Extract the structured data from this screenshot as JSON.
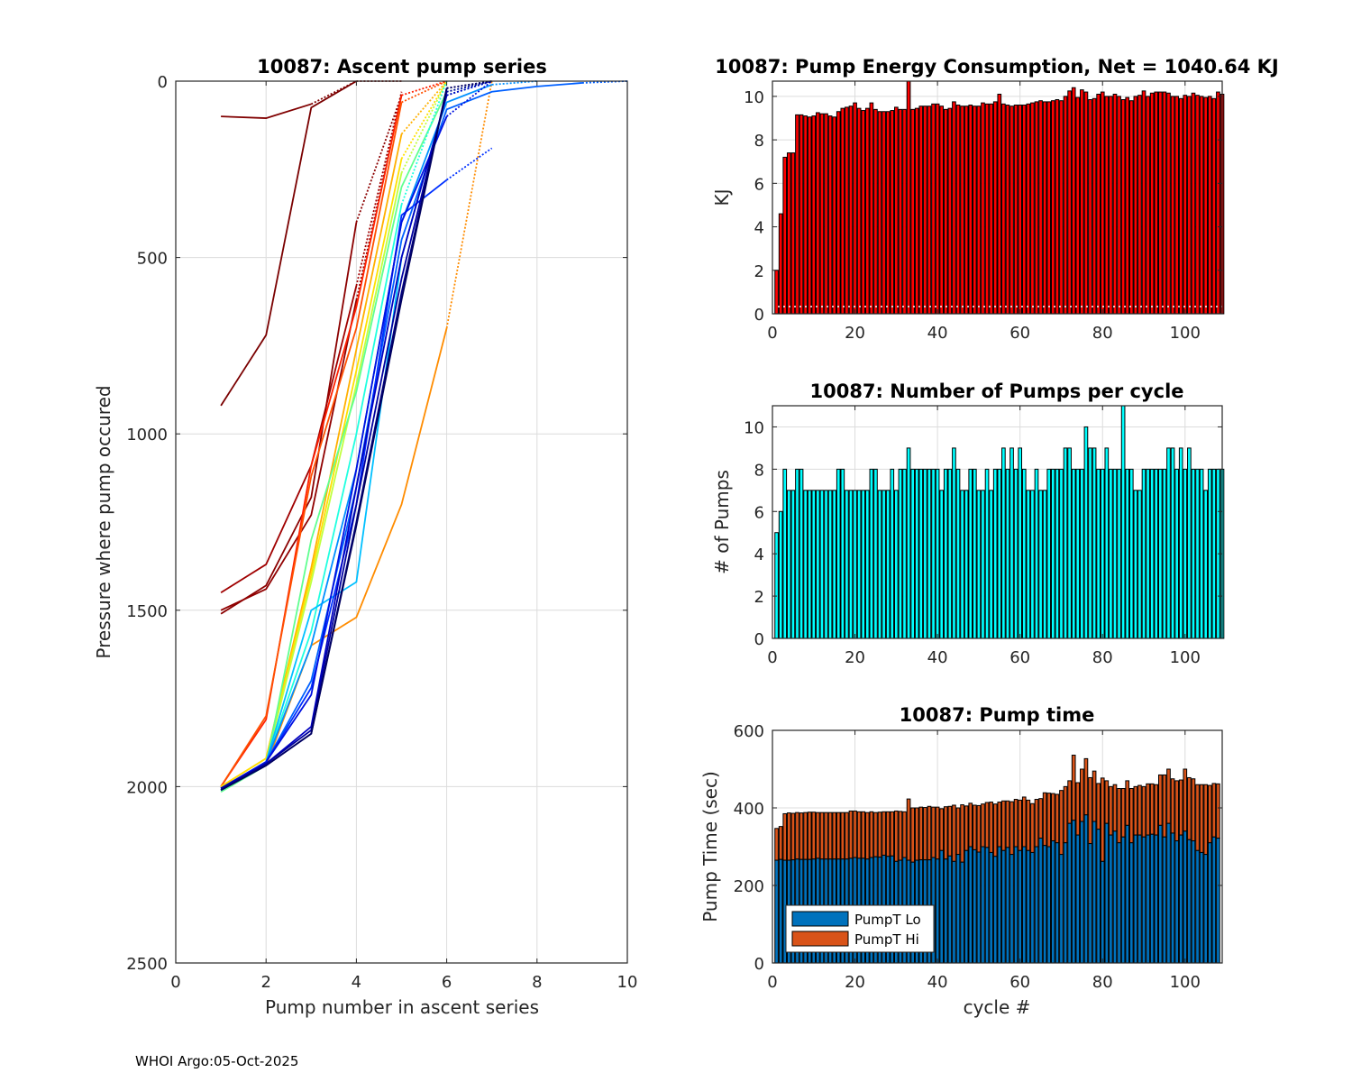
{
  "footer": "WHOI Argo:05-Oct-2025",
  "chart_data": [
    {
      "id": "ascent",
      "type": "line",
      "title": "10087: Ascent pump series",
      "xlabel": "Pump number in ascent series",
      "ylabel": "Pressure where pump occured",
      "xlim": [
        0,
        10
      ],
      "ylim": [
        0,
        2500
      ],
      "y_reversed": true,
      "xticks": [
        0,
        2,
        4,
        6,
        8,
        10
      ],
      "yticks": [
        0,
        500,
        1000,
        1500,
        2000,
        2500
      ],
      "grid": true,
      "colormap": "jet",
      "note": "one line per cycle, colored by cycle (jet colormap: early=dark red, late=dark blue); final segment to surface dotted",
      "series": [
        {
          "name": "cycle 1",
          "color": "#800000",
          "x": [
            1,
            2,
            3,
            4
          ],
          "y": [
            100,
            105,
            65,
            0
          ]
        },
        {
          "name": "cycle 2",
          "color": "#7a0000",
          "x": [
            1,
            2,
            3,
            4,
            5
          ],
          "y": [
            920,
            720,
            75,
            0,
            0
          ]
        },
        {
          "name": "cycle 3",
          "color": "#8b0000",
          "x": [
            1,
            2,
            3,
            4,
            5
          ],
          "y": [
            1510,
            1430,
            1180,
            400,
            40
          ]
        },
        {
          "name": "cycle 4",
          "color": "#900000",
          "x": [
            1,
            2,
            3,
            4,
            5
          ],
          "y": [
            1500,
            1440,
            1230,
            620,
            40
          ]
        },
        {
          "name": "cycle 5",
          "color": "#a00000",
          "x": [
            1,
            2,
            3,
            4,
            5
          ],
          "y": [
            1450,
            1370,
            1090,
            580,
            30
          ]
        },
        {
          "name": "cycle 8",
          "color": "#ff2000",
          "x": [
            1,
            2,
            3,
            4,
            5,
            6
          ],
          "y": [
            2000,
            1810,
            1090,
            640,
            40,
            0
          ]
        },
        {
          "name": "cycle 12",
          "color": "#ff5000",
          "x": [
            1,
            2,
            3,
            4,
            5,
            6
          ],
          "y": [
            2000,
            1800,
            1120,
            700,
            60,
            0
          ]
        },
        {
          "name": "cycle 18",
          "color": "#ff8c00",
          "x": [
            1,
            2,
            3,
            4,
            5,
            6,
            7
          ],
          "y": [
            2000,
            1940,
            1600,
            1520,
            1200,
            700,
            0
          ]
        },
        {
          "name": "cycle 22",
          "color": "#ffb000",
          "x": [
            1,
            2,
            3,
            4,
            5,
            6
          ],
          "y": [
            2000,
            1920,
            1380,
            760,
            150,
            0
          ]
        },
        {
          "name": "cycle 28",
          "color": "#ffe000",
          "x": [
            1,
            2,
            3,
            4,
            5,
            6
          ],
          "y": [
            2000,
            1920,
            1400,
            820,
            220,
            0
          ]
        },
        {
          "name": "cycle 34",
          "color": "#c0ff40",
          "x": [
            1,
            2,
            3,
            4,
            5,
            6
          ],
          "y": [
            2010,
            1930,
            1420,
            860,
            260,
            0
          ]
        },
        {
          "name": "cycle 40",
          "color": "#60ff90",
          "x": [
            1,
            2,
            3,
            4,
            5,
            6,
            7
          ],
          "y": [
            2015,
            1940,
            1300,
            880,
            300,
            30,
            0
          ]
        },
        {
          "name": "cycle 46",
          "color": "#20ffe0",
          "x": [
            1,
            2,
            3,
            4,
            5,
            6
          ],
          "y": [
            2010,
            1930,
            1560,
            1000,
            350,
            0
          ]
        },
        {
          "name": "cycle 52",
          "color": "#00c0ff",
          "x": [
            1,
            2,
            3,
            4,
            5,
            6,
            7
          ],
          "y": [
            2010,
            1930,
            1500,
            1420,
            500,
            40,
            0
          ]
        },
        {
          "name": "cycle 58",
          "color": "#0090ff",
          "x": [
            1,
            2,
            3,
            4,
            5,
            6,
            7,
            8
          ],
          "y": [
            2005,
            1930,
            1600,
            1100,
            400,
            60,
            10,
            0
          ]
        },
        {
          "name": "cycle 64",
          "color": "#0060ff",
          "x": [
            1,
            2,
            3,
            4,
            5,
            6,
            7,
            8,
            9,
            10
          ],
          "y": [
            2005,
            1930,
            1700,
            1150,
            450,
            80,
            30,
            15,
            5,
            0
          ]
        },
        {
          "name": "cycle 70",
          "color": "#0030ff",
          "x": [
            1,
            2,
            3,
            4,
            5,
            6,
            7
          ],
          "y": [
            2005,
            1930,
            1720,
            1200,
            380,
            280,
            190
          ]
        },
        {
          "name": "cycle 76",
          "color": "#0010e0",
          "x": [
            1,
            2,
            3,
            4,
            5,
            6,
            7
          ],
          "y": [
            2005,
            1930,
            1740,
            1100,
            400,
            100,
            0
          ]
        },
        {
          "name": "cycle 82",
          "color": "#0000c0",
          "x": [
            1,
            2,
            3,
            4,
            5,
            6,
            7
          ],
          "y": [
            2005,
            1935,
            1830,
            1150,
            500,
            40,
            0
          ]
        },
        {
          "name": "cycle 90",
          "color": "#0000a0",
          "x": [
            1,
            2,
            3,
            4,
            5,
            6,
            7
          ],
          "y": [
            2005,
            1935,
            1840,
            1200,
            560,
            30,
            0
          ]
        },
        {
          "name": "cycle 98",
          "color": "#000080",
          "x": [
            1,
            2,
            3,
            4,
            5,
            6,
            7
          ],
          "y": [
            2010,
            1940,
            1850,
            1250,
            600,
            20,
            0
          ]
        },
        {
          "name": "cycle 108",
          "color": "#000060",
          "x": [
            1,
            2,
            3,
            4,
            5,
            6,
            7
          ],
          "y": [
            2010,
            1940,
            1850,
            1260,
            620,
            20,
            0
          ]
        }
      ]
    },
    {
      "id": "energy",
      "type": "bar",
      "title": "10087: Pump Energy Consumption,  Net = 1040.64 KJ",
      "xlabel": "",
      "ylabel": "KJ",
      "xlim": [
        0,
        109
      ],
      "ylim": [
        0,
        10.7
      ],
      "xticks": [
        0,
        20,
        40,
        60,
        80,
        100
      ],
      "yticks": [
        0,
        2,
        4,
        6,
        8,
        10
      ],
      "grid": true,
      "bar_color": "#ff0000",
      "x_start": 1,
      "values": [
        2.0,
        4.6,
        7.2,
        7.4,
        7.4,
        9.15,
        9.15,
        9.1,
        9.05,
        9.1,
        9.25,
        9.2,
        9.2,
        9.1,
        9.05,
        9.3,
        9.45,
        9.5,
        9.55,
        9.7,
        9.45,
        9.35,
        9.45,
        9.7,
        9.4,
        9.3,
        9.3,
        9.3,
        9.35,
        9.5,
        9.4,
        9.4,
        10.7,
        9.4,
        9.45,
        9.55,
        9.55,
        9.55,
        9.65,
        9.65,
        9.55,
        9.4,
        9.45,
        9.75,
        9.6,
        9.55,
        9.55,
        9.6,
        9.55,
        9.55,
        9.7,
        9.65,
        9.65,
        9.75,
        10.1,
        9.65,
        9.6,
        9.55,
        9.6,
        9.6,
        9.6,
        9.65,
        9.7,
        9.75,
        9.8,
        9.75,
        9.75,
        9.8,
        9.85,
        9.8,
        10.0,
        10.25,
        10.4,
        9.95,
        10.3,
        10.2,
        9.85,
        9.9,
        10.1,
        10.2,
        10.0,
        10.0,
        10.1,
        10.0,
        9.85,
        9.95,
        9.8,
        10.0,
        10.05,
        10.25,
        10.0,
        10.15,
        10.2,
        10.2,
        10.2,
        10.15,
        10.0,
        10.0,
        9.9,
        10.05,
        10.0,
        10.15,
        10.05,
        10.0,
        9.95,
        10.0,
        9.9,
        10.2,
        10.1
      ]
    },
    {
      "id": "pumps",
      "type": "bar",
      "title": "10087: Number of Pumps per cycle",
      "xlabel": "",
      "ylabel": "# of Pumps",
      "xlim": [
        0,
        109
      ],
      "ylim": [
        0,
        11
      ],
      "xticks": [
        0,
        20,
        40,
        60,
        80,
        100
      ],
      "yticks": [
        0,
        2,
        4,
        6,
        8,
        10
      ],
      "grid": true,
      "bar_color": "#00ffff",
      "x_start": 1,
      "values": [
        5,
        6,
        8,
        7,
        7,
        8,
        8,
        7,
        7,
        7,
        7,
        7,
        7,
        7,
        7,
        8,
        8,
        7,
        7,
        7,
        7,
        7,
        7,
        8,
        8,
        7,
        7,
        7,
        8,
        7,
        8,
        8,
        9,
        8,
        8,
        8,
        8,
        8,
        8,
        8,
        7,
        8,
        8,
        9,
        8,
        7,
        7,
        8,
        8,
        7,
        7,
        8,
        7,
        8,
        8,
        9,
        8,
        9,
        8,
        9,
        8,
        7,
        7,
        8,
        7,
        7,
        8,
        8,
        8,
        8,
        9,
        9,
        8,
        8,
        8,
        10,
        9,
        9,
        8,
        8,
        9,
        8,
        8,
        8,
        11,
        8,
        8,
        7,
        7,
        8,
        8,
        8,
        8,
        8,
        8,
        9,
        9,
        8,
        9,
        8,
        9,
        8,
        8,
        8,
        7,
        8,
        8,
        8,
        8
      ]
    },
    {
      "id": "pumptime",
      "type": "bar",
      "stacked": true,
      "title": "10087: Pump time",
      "xlabel": "cycle #",
      "ylabel": "Pump Time (sec)",
      "xlim": [
        0,
        109
      ],
      "ylim": [
        0,
        600
      ],
      "xticks": [
        0,
        20,
        40,
        60,
        80,
        100
      ],
      "yticks": [
        0,
        200,
        400,
        600
      ],
      "grid": true,
      "legend": {
        "position": "bottom-left",
        "entries": [
          "PumpT Lo",
          "PumpT Hi"
        ]
      },
      "x_start": 1,
      "series": [
        {
          "name": "PumpT Lo",
          "color": "#0072bd",
          "values": [
            265,
            267,
            265,
            265,
            266,
            268,
            267,
            267,
            267,
            268,
            270,
            268,
            268,
            268,
            268,
            268,
            268,
            268,
            270,
            272,
            270,
            270,
            268,
            272,
            274,
            273,
            278,
            275,
            276,
            262,
            265,
            272,
            265,
            260,
            265,
            266,
            266,
            266,
            272,
            268,
            290,
            268,
            276,
            262,
            280,
            260,
            290,
            300,
            292,
            286,
            300,
            298,
            285,
            275,
            300,
            290,
            298,
            280,
            300,
            290,
            300,
            290,
            285,
            300,
            322,
            303,
            300,
            315,
            310,
            280,
            310,
            360,
            368,
            330,
            365,
            382,
            308,
            365,
            345,
            262,
            360,
            330,
            340,
            310,
            325,
            355,
            310,
            330,
            330,
            325,
            330,
            332,
            330,
            355,
            325,
            360,
            335,
            315,
            330,
            340,
            318,
            315,
            290,
            285,
            280,
            310,
            325,
            322
          ]
        },
        {
          "name": "PumpT Hi",
          "color": "#d95319",
          "values": [
            82,
            85,
            120,
            122,
            120,
            120,
            120,
            121,
            122,
            121,
            118,
            120,
            120,
            120,
            120,
            120,
            120,
            120,
            122,
            120,
            120,
            120,
            120,
            118,
            114,
            116,
            112,
            115,
            114,
            130,
            126,
            118,
            158,
            140,
            135,
            136,
            135,
            138,
            130,
            134,
            108,
            135,
            128,
            145,
            120,
            148,
            115,
            112,
            115,
            120,
            110,
            116,
            130,
            135,
            115,
            128,
            120,
            136,
            122,
            130,
            128,
            130,
            126,
            122,
            102,
            136,
            138,
            122,
            125,
            165,
            145,
            110,
            168,
            135,
            135,
            145,
            170,
            130,
            118,
            215,
            110,
            125,
            120,
            140,
            125,
            115,
            140,
            125,
            128,
            130,
            132,
            130,
            130,
            130,
            160,
            140,
            140,
            155,
            142,
            160,
            160,
            160,
            170,
            175,
            180,
            148,
            138,
            140
          ]
        }
      ]
    }
  ]
}
